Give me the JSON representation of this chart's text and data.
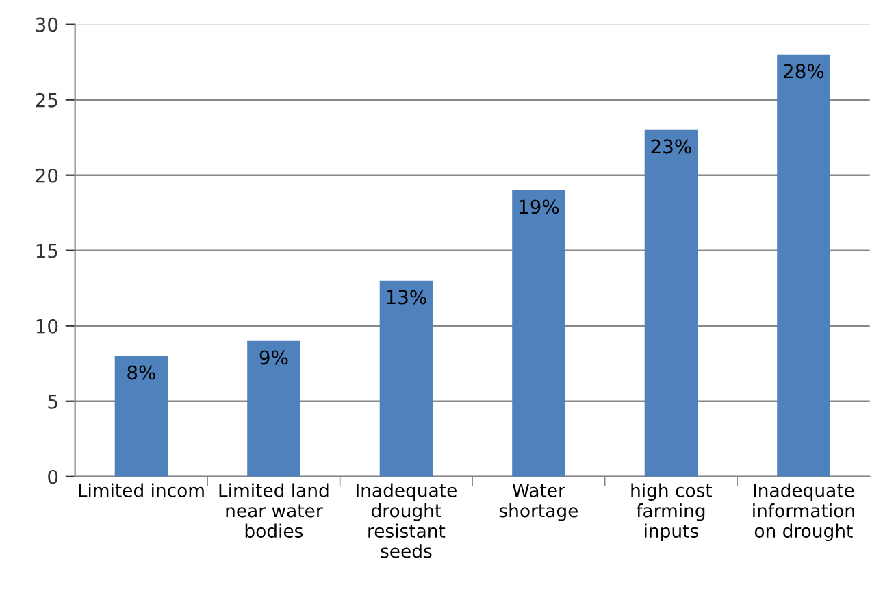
{
  "chart_data": {
    "type": "bar",
    "categories": [
      "Limited incom",
      "Limited land\nnear water\nbodies",
      "Inadequate\ndrought\nresistant\nseeds",
      "Water\nshortage",
      "high cost\nfarming\ninputs",
      "Inadequate\ninformation\non drought"
    ],
    "values": [
      8,
      9,
      13,
      19,
      23,
      28
    ],
    "value_labels": [
      "8%",
      "9%",
      "13%",
      "19%",
      "23%",
      "28%"
    ],
    "color": "#4f81bd",
    "ylim": [
      0,
      30
    ],
    "yticks": [
      0,
      5,
      10,
      15,
      20,
      25,
      30
    ],
    "grid": "y",
    "legend": false
  }
}
